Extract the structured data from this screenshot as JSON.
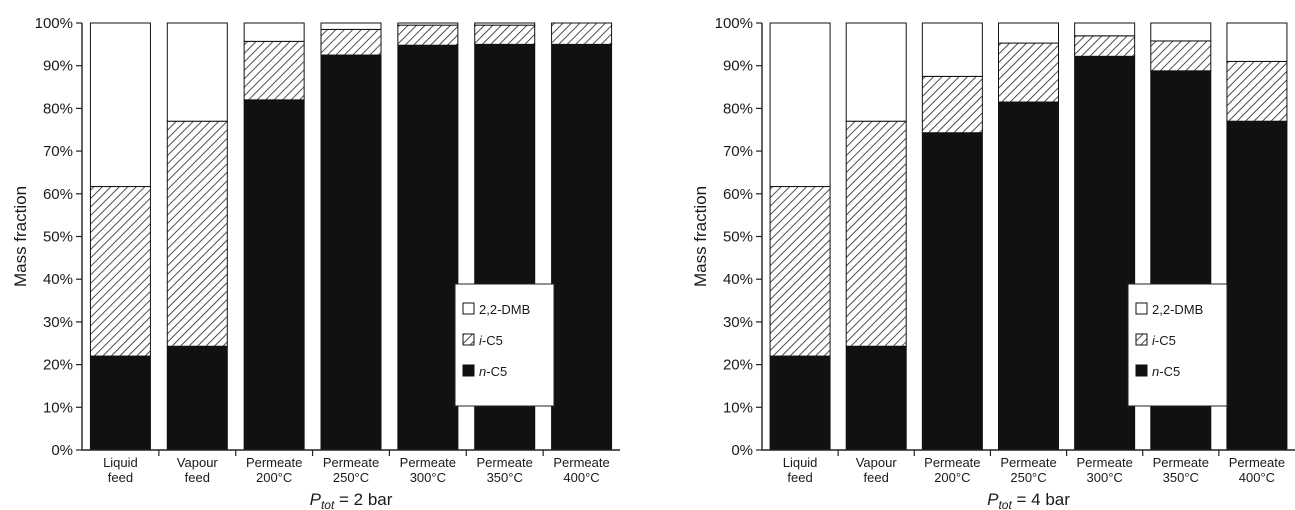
{
  "chart_data": [
    {
      "type": "bar",
      "stacked": true,
      "categories": [
        [
          "Liquid",
          "feed"
        ],
        [
          "Vapour",
          "feed"
        ],
        [
          "Permeate",
          "200°C"
        ],
        [
          "Permeate",
          "250°C"
        ],
        [
          "Permeate",
          "300°C"
        ],
        [
          "Permeate",
          "350°C"
        ],
        [
          "Permeate",
          "400°C"
        ]
      ],
      "series": [
        {
          "name": "n-C5",
          "name_italic": "n",
          "name_rest": "-C5",
          "values": [
            22,
            24.3,
            82,
            92.5,
            94.8,
            95,
            95
          ]
        },
        {
          "name": "i-C5",
          "name_italic": "i",
          "name_rest": "-C5",
          "values": [
            39.7,
            52.7,
            13.7,
            6,
            4.7,
            4.5,
            5
          ]
        },
        {
          "name": "2,2-DMB",
          "name_italic": "",
          "name_rest": "2,2-DMB",
          "values": [
            38.3,
            23,
            4.3,
            1.5,
            0.5,
            0.5,
            0
          ]
        }
      ],
      "ylabel": "Mass fraction",
      "xlabel_main": "P",
      "xlabel_sub": "tot",
      "xlabel_rest": " = 2 bar",
      "ylim": [
        0,
        100
      ],
      "yticks": [
        "0%",
        "10%",
        "20%",
        "30%",
        "40%",
        "50%",
        "60%",
        "70%",
        "80%",
        "90%",
        "100%"
      ],
      "legend": "lower-right"
    },
    {
      "type": "bar",
      "stacked": true,
      "categories": [
        [
          "Liquid",
          "feed"
        ],
        [
          "Vapour",
          "feed"
        ],
        [
          "Permeate",
          "200°C"
        ],
        [
          "Permeate",
          "250°C"
        ],
        [
          "Permeate",
          "300°C"
        ],
        [
          "Permeate",
          "350°C"
        ],
        [
          "Permeate",
          "400°C"
        ]
      ],
      "series": [
        {
          "name": "n-C5",
          "name_italic": "n",
          "name_rest": "-C5",
          "values": [
            22,
            24.3,
            74.3,
            81.5,
            92.2,
            88.8,
            77
          ]
        },
        {
          "name": "i-C5",
          "name_italic": "i",
          "name_rest": "-C5",
          "values": [
            39.7,
            52.7,
            13.2,
            13.8,
            4.8,
            7,
            14
          ]
        },
        {
          "name": "2,2-DMB",
          "name_italic": "",
          "name_rest": "2,2-DMB",
          "values": [
            38.3,
            23,
            12.5,
            4.7,
            3,
            4.2,
            9
          ]
        }
      ],
      "ylabel": "Mass fraction",
      "xlabel_main": "P",
      "xlabel_sub": "tot",
      "xlabel_rest": " = 4 bar",
      "ylim": [
        0,
        100
      ],
      "yticks": [
        "0%",
        "10%",
        "20%",
        "30%",
        "40%",
        "50%",
        "60%",
        "70%",
        "80%",
        "90%",
        "100%"
      ],
      "legend": "lower-right"
    }
  ]
}
